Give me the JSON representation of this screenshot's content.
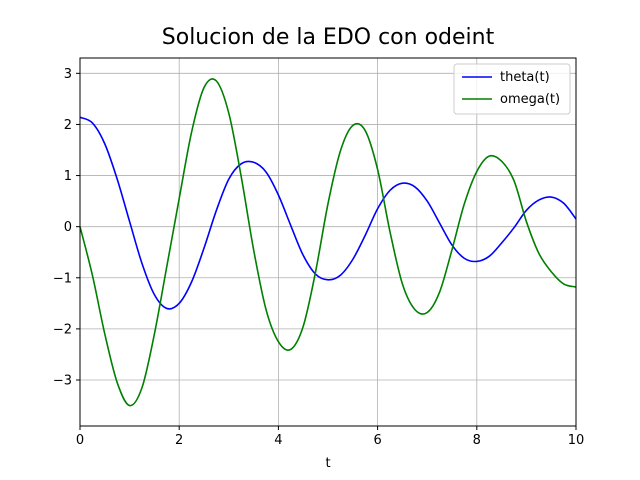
{
  "chart_data": {
    "type": "line",
    "title": "Solucion de la EDO con odeint",
    "xlabel": "t",
    "ylabel": "",
    "xlim": [
      0,
      10
    ],
    "ylim": [
      -3.9,
      3.3
    ],
    "xticks": [
      0,
      2,
      4,
      6,
      8,
      10
    ],
    "xtick_labels": [
      "0",
      "2",
      "4",
      "6",
      "8",
      "10"
    ],
    "yticks": [
      -3,
      -2,
      -1,
      0,
      1,
      2,
      3
    ],
    "ytick_labels": [
      "−3",
      "−2",
      "−1",
      "0",
      "1",
      "2",
      "3"
    ],
    "grid": true,
    "legend_position": "top-right",
    "x": [
      0,
      0.25,
      0.5,
      0.75,
      1,
      1.25,
      1.5,
      1.75,
      2,
      2.25,
      2.5,
      2.75,
      3,
      3.25,
      3.5,
      3.75,
      4,
      4.25,
      4.5,
      4.75,
      5,
      5.25,
      5.5,
      5.75,
      6,
      6.25,
      6.5,
      6.75,
      7,
      7.25,
      7.5,
      7.75,
      8,
      8.25,
      8.5,
      8.75,
      9,
      9.25,
      9.5,
      9.75,
      10
    ],
    "series": [
      {
        "name": "theta(t)",
        "color": "#0000ff",
        "values": [
          2.14,
          2.03,
          1.62,
          0.93,
          0.1,
          -0.72,
          -1.33,
          -1.6,
          -1.5,
          -1.08,
          -0.42,
          0.32,
          0.93,
          1.23,
          1.26,
          1.07,
          0.62,
          0.02,
          -0.56,
          -0.93,
          -1.04,
          -0.95,
          -0.64,
          -0.17,
          0.35,
          0.71,
          0.85,
          0.78,
          0.5,
          0.07,
          -0.36,
          -0.62,
          -0.68,
          -0.58,
          -0.32,
          -0.02,
          0.32,
          0.52,
          0.58,
          0.46,
          0.15
        ]
      },
      {
        "name": "omega(t)",
        "color": "#008000",
        "values": [
          0,
          -0.95,
          -2.1,
          -3.05,
          -3.5,
          -3.15,
          -2.1,
          -0.78,
          0.55,
          1.85,
          2.72,
          2.85,
          2.22,
          0.98,
          -0.45,
          -1.62,
          -2.25,
          -2.4,
          -1.95,
          -0.88,
          0.45,
          1.48,
          1.98,
          1.88,
          1.12,
          -0.1,
          -1.12,
          -1.62,
          -1.68,
          -1.28,
          -0.45,
          0.45,
          1.08,
          1.38,
          1.28,
          0.9,
          0.1,
          -0.52,
          -0.88,
          -1.12,
          -1.18
        ]
      }
    ]
  }
}
